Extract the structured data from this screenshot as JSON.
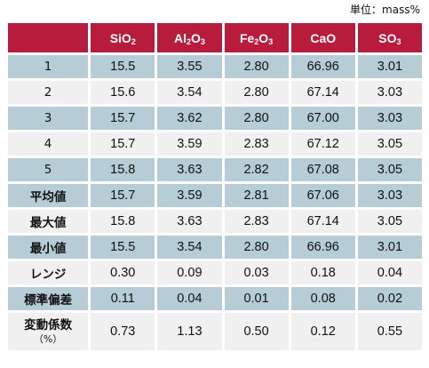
{
  "unit_note": "単位：mass%",
  "columns": [
    {
      "base": "",
      "parts": [
        ""
      ]
    },
    {
      "parts": [
        "SiO",
        "2"
      ]
    },
    {
      "parts": [
        "Al",
        "2",
        "O",
        "3"
      ]
    },
    {
      "parts": [
        "Fe",
        "2",
        "O",
        "3"
      ]
    },
    {
      "parts": [
        "CaO"
      ]
    },
    {
      "parts": [
        "SO",
        "3"
      ]
    }
  ],
  "rows": [
    {
      "label": "1",
      "values": [
        "15.5",
        "3.55",
        "2.80",
        "66.96",
        "3.01"
      ],
      "shade": true
    },
    {
      "label": "2",
      "values": [
        "15.6",
        "3.54",
        "2.80",
        "67.14",
        "3.03"
      ],
      "shade": false
    },
    {
      "label": "3",
      "values": [
        "15.7",
        "3.62",
        "2.80",
        "67.00",
        "3.03"
      ],
      "shade": true
    },
    {
      "label": "4",
      "values": [
        "15.7",
        "3.59",
        "2.83",
        "67.12",
        "3.05"
      ],
      "shade": false
    },
    {
      "label": "5",
      "values": [
        "15.8",
        "3.63",
        "2.82",
        "67.08",
        "3.05"
      ],
      "shade": true
    },
    {
      "label": "平均値",
      "values": [
        "15.7",
        "3.59",
        "2.81",
        "67.06",
        "3.03"
      ],
      "shade": true,
      "bold": true
    },
    {
      "label": "最大値",
      "values": [
        "15.8",
        "3.63",
        "2.83",
        "67.14",
        "3.05"
      ],
      "shade": false,
      "bold": true
    },
    {
      "label": "最小値",
      "values": [
        "15.5",
        "3.54",
        "2.80",
        "66.96",
        "3.01"
      ],
      "shade": true,
      "bold": true
    },
    {
      "label": "レンジ",
      "values": [
        "0.30",
        "0.09",
        "0.03",
        "0.18",
        "0.04"
      ],
      "shade": false,
      "bold": true
    },
    {
      "label": "標準偏差",
      "values": [
        "0.11",
        "0.04",
        "0.01",
        "0.08",
        "0.02"
      ],
      "shade": true,
      "bold": true
    },
    {
      "label": "変動係数",
      "sublabel": "（%）",
      "values": [
        "0.73",
        "1.13",
        "0.50",
        "0.12",
        "0.55"
      ],
      "shade": false,
      "bold": true,
      "tall": true
    }
  ],
  "colors": {
    "header_bg": "#b71c3c",
    "header_text": "#ffffff",
    "row_shade": "#b7cdd6",
    "row_plain": "#f0f0f0"
  }
}
